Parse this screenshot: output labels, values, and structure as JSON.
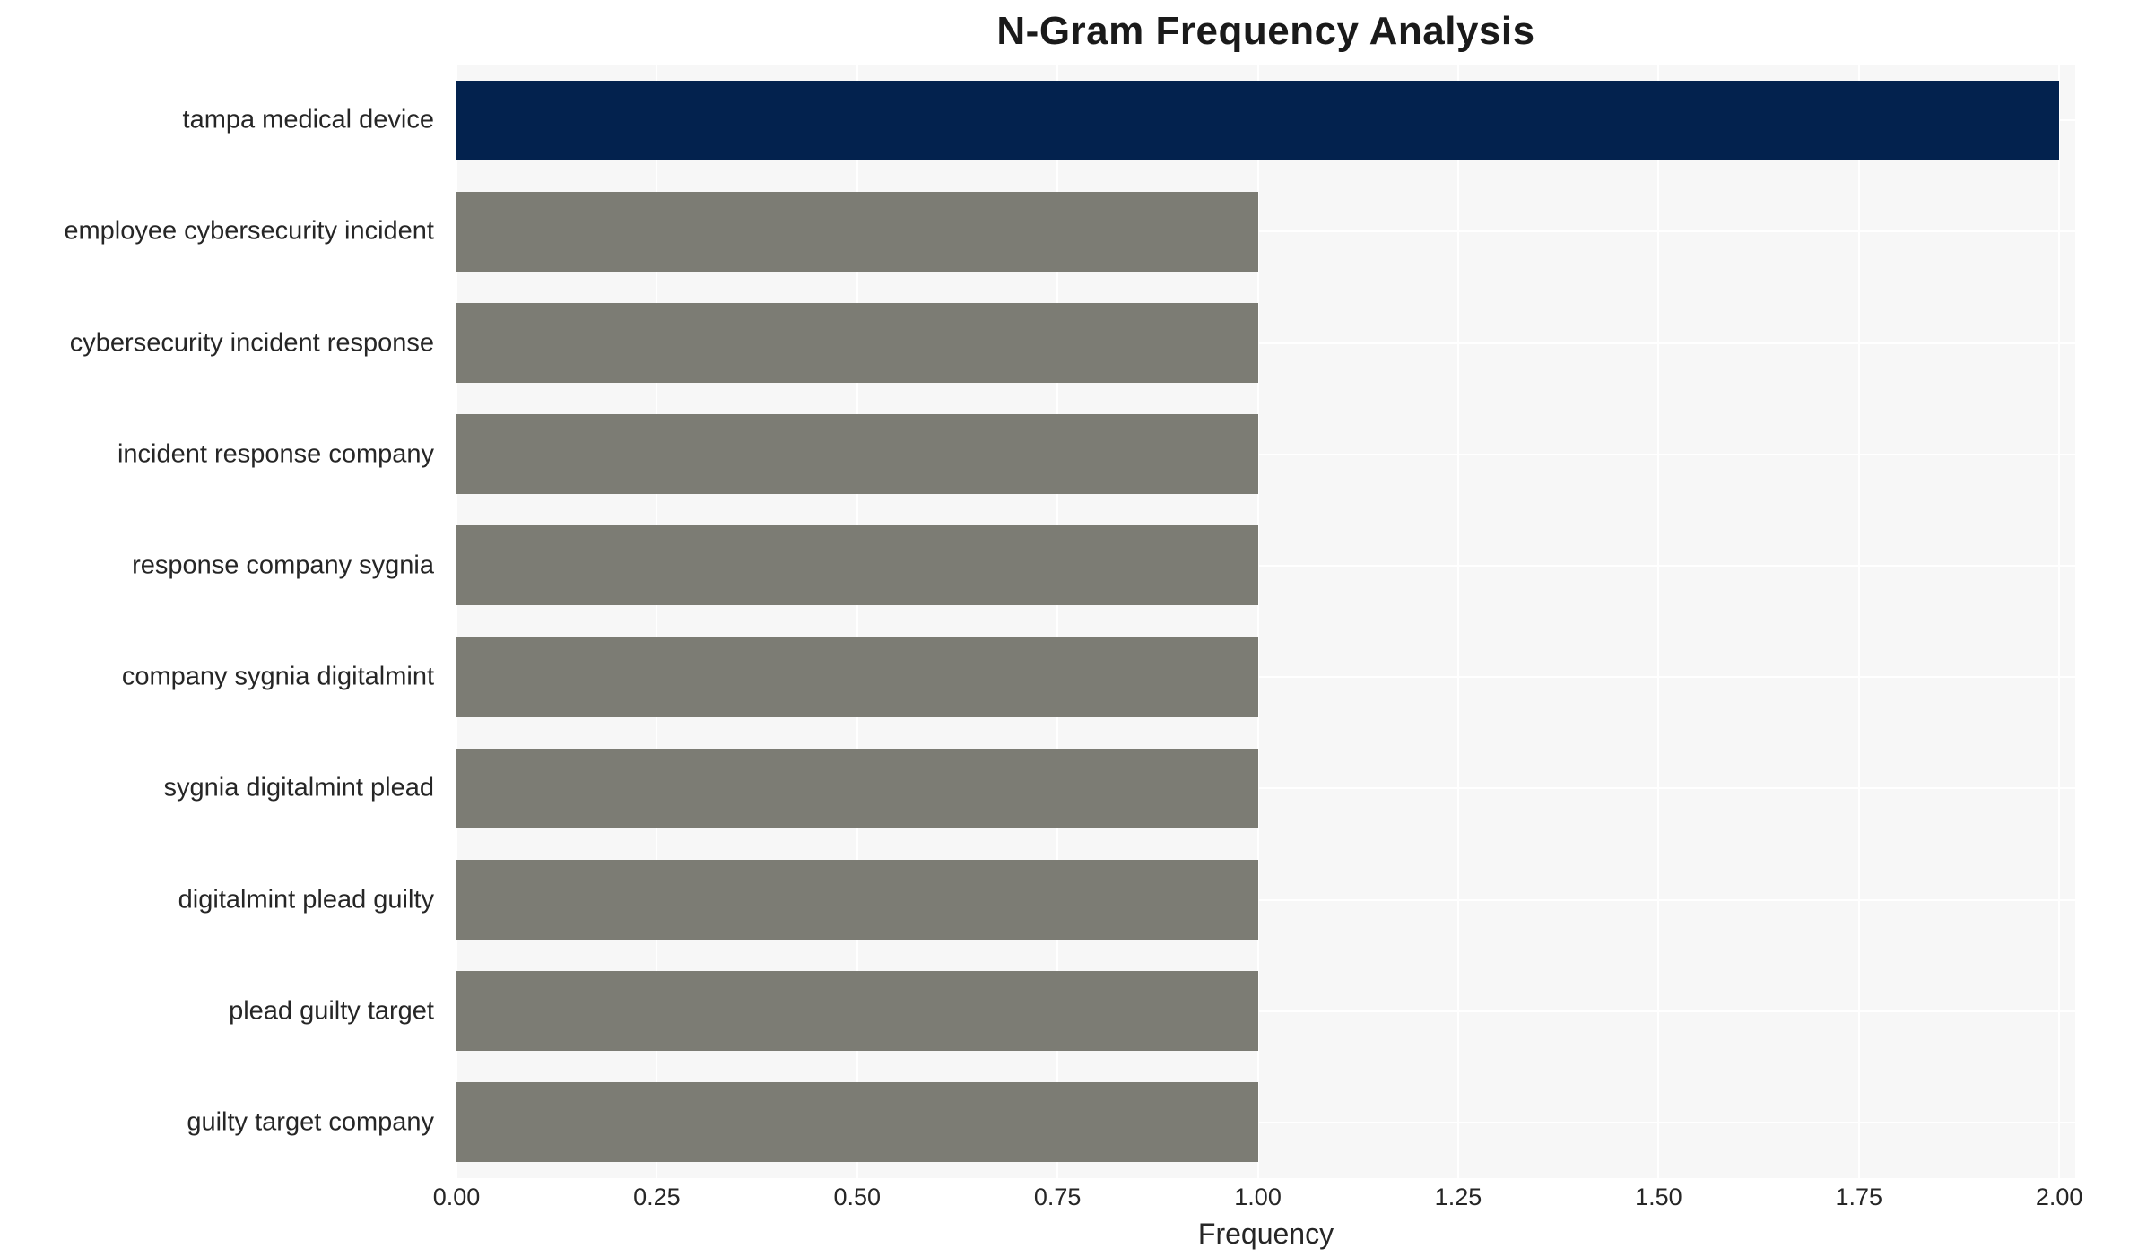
{
  "chart_data": {
    "type": "bar",
    "orientation": "horizontal",
    "title": "N-Gram Frequency Analysis",
    "xlabel": "Frequency",
    "categories": [
      "tampa medical device",
      "employee cybersecurity incident",
      "cybersecurity incident response",
      "incident response company",
      "response company sygnia",
      "company sygnia digitalmint",
      "sygnia digitalmint plead",
      "digitalmint plead guilty",
      "plead guilty target",
      "guilty target company"
    ],
    "values": [
      2,
      1,
      1,
      1,
      1,
      1,
      1,
      1,
      1,
      1
    ],
    "bar_colors": [
      "#03224e",
      "#7c7c74",
      "#7c7c74",
      "#7c7c74",
      "#7c7c74",
      "#7c7c74",
      "#7c7c74",
      "#7c7c74",
      "#7c7c74",
      "#7c7c74"
    ],
    "xticks": [
      {
        "value": 0.0,
        "label": "0.00"
      },
      {
        "value": 0.25,
        "label": "0.25"
      },
      {
        "value": 0.5,
        "label": "0.50"
      },
      {
        "value": 0.75,
        "label": "0.75"
      },
      {
        "value": 1.0,
        "label": "1.00"
      },
      {
        "value": 1.25,
        "label": "1.25"
      },
      {
        "value": 1.5,
        "label": "1.50"
      },
      {
        "value": 1.75,
        "label": "1.75"
      },
      {
        "value": 2.0,
        "label": "2.00"
      }
    ],
    "xlim": [
      0,
      2.02
    ],
    "grid": true,
    "legend": false,
    "plot_bg": "#f7f7f7",
    "grid_color": "#ffffff",
    "text_color": "#262626"
  }
}
